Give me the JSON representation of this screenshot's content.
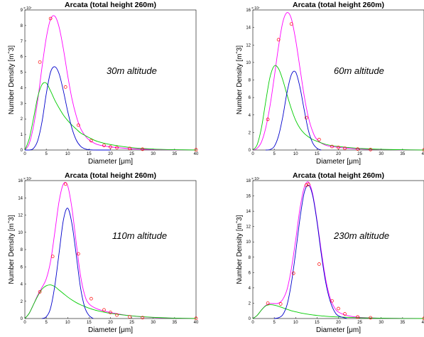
{
  "chart_data": [
    {
      "type": "line",
      "title": "Arcata (total height 260m)",
      "annotation": "30m altitude",
      "xlabel": "Diameter [μm]",
      "ylabel": "Number Density [mˆ3]",
      "multiplier_label": "× 10⁷",
      "xlim": [
        0,
        40
      ],
      "ylim": [
        0,
        9
      ],
      "xticks": [
        0,
        5,
        10,
        15,
        20,
        25,
        30,
        35,
        40
      ],
      "yticks": [
        0,
        1,
        2,
        3,
        4,
        5,
        6,
        7,
        8,
        9
      ],
      "series": [
        {
          "color": "#ff00ff",
          "x": [
            0,
            1,
            2,
            3,
            4,
            5,
            6,
            7,
            8,
            9,
            10,
            11,
            12,
            13,
            14,
            15,
            17,
            20,
            25,
            30,
            35,
            40
          ],
          "y": [
            0,
            0.4,
            1.5,
            3.2,
            5.3,
            7.2,
            8.4,
            8.6,
            7.9,
            6.5,
            4.8,
            3.3,
            2.2,
            1.4,
            0.95,
            0.65,
            0.35,
            0.2,
            0.08,
            0.03,
            0.01,
            0
          ]
        },
        {
          "color": "#00cc00",
          "x": [
            0,
            1,
            2,
            3,
            4,
            5,
            6,
            7,
            8,
            9,
            10,
            11,
            12,
            13,
            14,
            15,
            17,
            20,
            25,
            30,
            35,
            40
          ],
          "y": [
            0,
            0.7,
            2,
            3.4,
            4.2,
            4.3,
            3.8,
            3.2,
            2.7,
            2.25,
            1.9,
            1.6,
            1.35,
            1.1,
            0.95,
            0.8,
            0.55,
            0.35,
            0.15,
            0.06,
            0.02,
            0
          ]
        },
        {
          "color": "#0000cc",
          "x": [
            0,
            1,
            2,
            3,
            4,
            5,
            6,
            7,
            8,
            9,
            10,
            11,
            12,
            13,
            14,
            15,
            17,
            20
          ],
          "y": [
            0,
            0,
            0.1,
            0.6,
            1.8,
            3.6,
            5,
            5.35,
            4.9,
            3.8,
            2.5,
            1.4,
            0.65,
            0.25,
            0.08,
            0.02,
            0,
            0
          ]
        }
      ],
      "points": {
        "color": "#ff0000",
        "x": [
          3.5,
          6,
          9.5,
          12.5,
          15.5,
          18.5,
          20,
          21.5,
          24.5,
          27.5,
          40
        ],
        "y": [
          5.65,
          8.45,
          4.05,
          1.6,
          0.6,
          0.3,
          0.2,
          0.15,
          0.1,
          0.05,
          0.02
        ]
      }
    },
    {
      "type": "line",
      "title": "Arcata (total height 260m)",
      "annotation": "60m altitude",
      "xlabel": "Diameter [μm]",
      "ylabel": "Number Density [mˆ3]",
      "multiplier_label": "× 10⁷",
      "xlim": [
        0,
        40
      ],
      "ylim": [
        0,
        16
      ],
      "xticks": [
        0,
        5,
        10,
        15,
        20,
        25,
        30,
        35,
        40
      ],
      "yticks": [
        0,
        2,
        4,
        6,
        8,
        10,
        12,
        14,
        16
      ],
      "series": [
        {
          "color": "#ff00ff",
          "x": [
            0,
            1,
            2,
            3,
            4,
            5,
            6,
            7,
            8,
            9,
            10,
            11,
            12,
            13,
            14,
            15,
            17,
            20,
            25,
            30,
            35,
            40
          ],
          "y": [
            0,
            0.2,
            0.9,
            2.5,
            5,
            8.3,
            11.8,
            14.6,
            15.7,
            15,
            12.6,
            9.4,
            6.2,
            3.7,
            2.1,
            1.2,
            0.55,
            0.3,
            0.12,
            0.05,
            0.02,
            0
          ]
        },
        {
          "color": "#00cc00",
          "x": [
            0,
            1,
            2,
            3,
            4,
            5,
            6,
            7,
            8,
            9,
            10,
            11,
            12,
            13,
            14,
            15,
            17,
            20,
            25,
            30,
            35,
            40
          ],
          "y": [
            0,
            0.6,
            2.5,
            5.5,
            8.3,
            9.6,
            9.3,
            8,
            6.3,
            4.7,
            3.4,
            2.5,
            1.9,
            1.5,
            1.2,
            1,
            0.65,
            0.4,
            0.18,
            0.08,
            0.03,
            0
          ]
        },
        {
          "color": "#0000cc",
          "x": [
            3,
            4,
            5,
            6,
            7,
            8,
            9,
            10,
            11,
            12,
            13,
            14,
            15,
            16
          ],
          "y": [
            0,
            0.05,
            0.4,
            1.6,
            3.8,
            6.6,
            8.6,
            8.9,
            7.2,
            4.6,
            2.2,
            0.8,
            0.2,
            0
          ]
        }
      ],
      "points": {
        "color": "#ff0000",
        "x": [
          3.5,
          6,
          9,
          12.5,
          15.5,
          18.5,
          20,
          21.5,
          24.5,
          27.5,
          40
        ],
        "y": [
          3.5,
          12.6,
          14.4,
          3.7,
          1.2,
          0.4,
          0.3,
          0.2,
          0.1,
          0.05,
          0.02
        ]
      }
    },
    {
      "type": "line",
      "title": "Arcata (total height 260m)",
      "annotation": "110m altitude",
      "xlabel": "Diameter [μm]",
      "ylabel": "Number Density [mˆ3]",
      "multiplier_label": "× 10⁷",
      "xlim": [
        0,
        40
      ],
      "ylim": [
        0,
        16
      ],
      "xticks": [
        0,
        5,
        10,
        15,
        20,
        25,
        30,
        35,
        40
      ],
      "yticks": [
        0,
        2,
        4,
        6,
        8,
        10,
        12,
        14,
        16
      ],
      "series": [
        {
          "color": "#ff00ff",
          "x": [
            0,
            1,
            2,
            3,
            4,
            5,
            6,
            7,
            8,
            9,
            10,
            11,
            12,
            13,
            14,
            15,
            17,
            20,
            25,
            30,
            35,
            40
          ],
          "y": [
            0,
            0.6,
            1.6,
            2.7,
            3.6,
            4.6,
            6.6,
            10,
            13.6,
            15.6,
            15.4,
            12.8,
            8.8,
            5,
            2.7,
            1.7,
            1.1,
            0.7,
            0.3,
            0.12,
            0.04,
            0
          ]
        },
        {
          "color": "#00cc00",
          "x": [
            0,
            1,
            2,
            3,
            4,
            5,
            6,
            7,
            8,
            9,
            10,
            11,
            12,
            13,
            14,
            15,
            17,
            20,
            25,
            30,
            35,
            40
          ],
          "y": [
            0,
            0.6,
            1.6,
            2.6,
            3.4,
            3.8,
            3.9,
            3.7,
            3.3,
            2.9,
            2.5,
            2.15,
            1.85,
            1.6,
            1.4,
            1.2,
            0.9,
            0.6,
            0.3,
            0.14,
            0.05,
            0
          ]
        },
        {
          "color": "#0000cc",
          "x": [
            4,
            5,
            6,
            7,
            8,
            9,
            10,
            11,
            12,
            13,
            14,
            15,
            16
          ],
          "y": [
            0,
            0.2,
            1.2,
            3.8,
            7.6,
            11.4,
            12.8,
            11,
            7.4,
            3.6,
            1.3,
            0.35,
            0
          ]
        }
      ],
      "points": {
        "color": "#ff0000",
        "x": [
          3.5,
          6.5,
          9.5,
          12.5,
          15.5,
          18.5,
          20,
          21.5,
          24.5,
          27.5,
          40
        ],
        "y": [
          3.1,
          7.2,
          15.6,
          7.5,
          2.3,
          1,
          0.7,
          0.4,
          0.2,
          0.1,
          0.02
        ]
      }
    },
    {
      "type": "line",
      "title": "Arcata (total height 260m)",
      "annotation": "230m altitude",
      "xlabel": "Diameter [μm]",
      "ylabel": "Number Density [mˆ3]",
      "multiplier_label": "× 10⁷",
      "xlim": [
        0,
        40
      ],
      "ylim": [
        0,
        18
      ],
      "xticks": [
        0,
        5,
        10,
        15,
        20,
        25,
        30,
        35,
        40
      ],
      "yticks": [
        0,
        2,
        4,
        6,
        8,
        10,
        12,
        14,
        16,
        18
      ],
      "series": [
        {
          "color": "#ff00ff",
          "x": [
            0,
            1,
            2,
            3,
            4,
            5,
            6,
            7,
            8,
            9,
            10,
            11,
            12,
            13,
            14,
            15,
            16,
            17,
            18,
            19,
            20,
            22,
            25,
            30,
            35,
            40
          ],
          "y": [
            0,
            0.4,
            1.1,
            1.7,
            1.95,
            1.95,
            2,
            2.5,
            3.8,
            6.5,
            10.2,
            14.3,
            17.1,
            17.8,
            16.2,
            12.8,
            8.8,
            5.2,
            2.8,
            1.5,
            0.85,
            0.4,
            0.15,
            0.05,
            0.02,
            0
          ]
        },
        {
          "color": "#00cc00",
          "x": [
            0,
            1,
            2,
            3,
            4,
            5,
            6,
            7,
            8,
            9,
            10,
            11,
            12,
            13,
            14,
            15,
            17,
            20,
            25,
            30,
            35,
            40
          ],
          "y": [
            0,
            0.4,
            1.1,
            1.65,
            1.8,
            1.75,
            1.6,
            1.4,
            1.2,
            1.02,
            0.88,
            0.75,
            0.64,
            0.55,
            0.47,
            0.4,
            0.3,
            0.2,
            0.1,
            0.04,
            0.01,
            0
          ]
        },
        {
          "color": "#0000cc",
          "x": [
            5,
            6,
            7,
            8,
            9,
            10,
            11,
            12,
            13,
            14,
            15,
            16,
            17,
            18,
            19,
            20,
            22
          ],
          "y": [
            0,
            0.1,
            0.5,
            1.8,
            4.6,
            8.6,
            13,
            16.4,
            17.4,
            16,
            12.6,
            8.4,
            4.8,
            2.4,
            1,
            0.35,
            0
          ]
        }
      ],
      "points": {
        "color": "#ff0000",
        "x": [
          3.5,
          6.5,
          9.5,
          12.5,
          13,
          15.5,
          18.5,
          20,
          21.5,
          24.5,
          27.5,
          40
        ],
        "y": [
          2,
          1.9,
          5.9,
          17.4,
          17.5,
          7.1,
          2.3,
          1.3,
          0.6,
          0.2,
          0.1,
          0.02
        ]
      }
    }
  ]
}
